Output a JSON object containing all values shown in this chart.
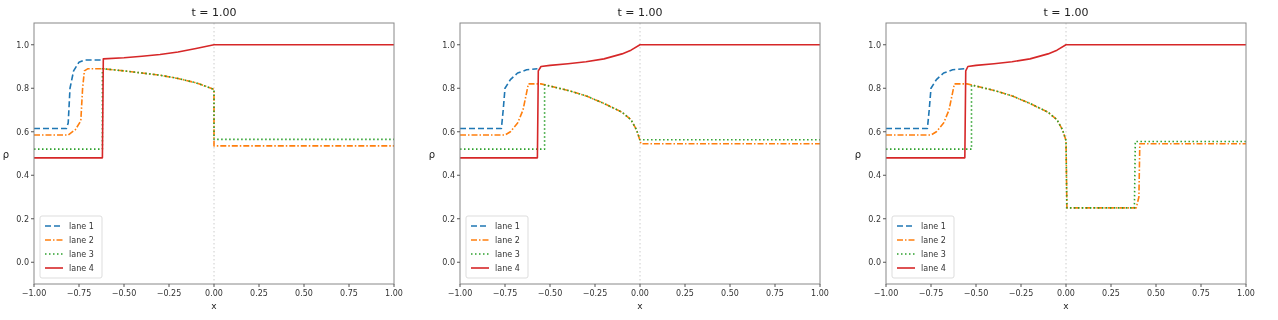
{
  "chart_data": [
    {
      "type": "line",
      "title": "t = 1.00",
      "xlabel": "x",
      "ylabel": "ρ",
      "xlim": [
        -1,
        1
      ],
      "ylim": [
        -0.1,
        1.1
      ],
      "xticks": [
        {
          "value": -1,
          "label": "−1.00"
        },
        {
          "value": -0.75,
          "label": "−0.75"
        },
        {
          "value": -0.5,
          "label": "−0.50"
        },
        {
          "value": -0.25,
          "label": "−0.25"
        },
        {
          "value": 0,
          "label": "0.00"
        },
        {
          "value": 0.25,
          "label": "0.25"
        },
        {
          "value": 0.5,
          "label": "0.50"
        },
        {
          "value": 0.75,
          "label": "0.75"
        },
        {
          "value": 1,
          "label": "1.00"
        }
      ],
      "yticks": [
        {
          "value": 0,
          "label": "0.0"
        },
        {
          "value": 0.2,
          "label": "0.2"
        },
        {
          "value": 0.4,
          "label": "0.4"
        },
        {
          "value": 0.6,
          "label": "0.6"
        },
        {
          "value": 0.8,
          "label": "0.8"
        },
        {
          "value": 1,
          "label": "1.0"
        }
      ],
      "grid": false,
      "legend": "bottom left",
      "ref_lines": [
        {
          "axis": "x",
          "value": 0,
          "color": "#cccccc",
          "line_style": "dotted"
        }
      ],
      "series": [
        {
          "name": "lane 1",
          "color": "#1f77b4",
          "line_style": "dashed",
          "x": [
            -1,
            -0.82,
            -0.81,
            -0.8,
            -0.78,
            -0.75,
            -0.72,
            -0.62
          ],
          "values": [
            0.615,
            0.615,
            0.64,
            0.8,
            0.88,
            0.92,
            0.93,
            0.93
          ]
        },
        {
          "name": "lane 2",
          "color": "#ff7f0e",
          "line_style": "dashdot",
          "x": [
            -1,
            -0.81,
            -0.77,
            -0.74,
            -0.73,
            -0.72,
            -0.7,
            -0.62,
            -0.5,
            -0.4,
            -0.3,
            -0.2,
            -0.1,
            -0.05,
            0,
            0,
            1
          ],
          "values": [
            0.585,
            0.585,
            0.61,
            0.65,
            0.8,
            0.88,
            0.89,
            0.89,
            0.88,
            0.87,
            0.86,
            0.845,
            0.825,
            0.81,
            0.795,
            0.535,
            0.535
          ]
        },
        {
          "name": "lane 3",
          "color": "#2ca02c",
          "line_style": "dotted",
          "x": [
            -1,
            -0.62,
            -0.62,
            -0.5,
            -0.4,
            -0.3,
            -0.2,
            -0.1,
            -0.05,
            0,
            0,
            1
          ],
          "values": [
            0.52,
            0.52,
            0.89,
            0.88,
            0.87,
            0.86,
            0.845,
            0.825,
            0.81,
            0.795,
            0.565,
            0.565
          ]
        },
        {
          "name": "lane 4",
          "color": "#d62728",
          "line_style": "solid",
          "x": [
            -1,
            -0.62,
            -0.615,
            -0.5,
            -0.4,
            -0.3,
            -0.2,
            -0.1,
            0,
            1
          ],
          "values": [
            0.48,
            0.48,
            0.935,
            0.94,
            0.947,
            0.955,
            0.967,
            0.983,
            1.0,
            1.0
          ]
        }
      ]
    },
    {
      "type": "line",
      "title": "t = 1.00",
      "xlabel": "x",
      "ylabel": "ρ",
      "xlim": [
        -1,
        1
      ],
      "ylim": [
        -0.1,
        1.1
      ],
      "xticks": [
        {
          "value": -1,
          "label": "−1.00"
        },
        {
          "value": -0.75,
          "label": "−0.75"
        },
        {
          "value": -0.5,
          "label": "−0.50"
        },
        {
          "value": -0.25,
          "label": "−0.25"
        },
        {
          "value": 0,
          "label": "0.00"
        },
        {
          "value": 0.25,
          "label": "0.25"
        },
        {
          "value": 0.5,
          "label": "0.50"
        },
        {
          "value": 0.75,
          "label": "0.75"
        },
        {
          "value": 1,
          "label": "1.00"
        }
      ],
      "yticks": [
        {
          "value": 0,
          "label": "0.0"
        },
        {
          "value": 0.2,
          "label": "0.2"
        },
        {
          "value": 0.4,
          "label": "0.4"
        },
        {
          "value": 0.6,
          "label": "0.6"
        },
        {
          "value": 0.8,
          "label": "0.8"
        },
        {
          "value": 1,
          "label": "1.0"
        }
      ],
      "grid": false,
      "legend": "bottom left",
      "ref_lines": [
        {
          "axis": "x",
          "value": 0,
          "color": "#cccccc",
          "line_style": "dotted"
        }
      ],
      "series": [
        {
          "name": "lane 1",
          "color": "#1f77b4",
          "line_style": "dashed",
          "x": [
            -1,
            -0.77,
            -0.76,
            -0.75,
            -0.72,
            -0.68,
            -0.63,
            -0.57
          ],
          "values": [
            0.615,
            0.615,
            0.7,
            0.8,
            0.84,
            0.87,
            0.885,
            0.89
          ]
        },
        {
          "name": "lane 2",
          "color": "#ff7f0e",
          "line_style": "dashdot",
          "x": [
            -1,
            -0.75,
            -0.72,
            -0.68,
            -0.65,
            -0.63,
            -0.62,
            -0.55,
            -0.5,
            -0.4,
            -0.3,
            -0.2,
            -0.1,
            -0.05,
            -0.02,
            0,
            0.005,
            1
          ],
          "values": [
            0.585,
            0.585,
            0.6,
            0.64,
            0.7,
            0.78,
            0.82,
            0.82,
            0.81,
            0.79,
            0.765,
            0.73,
            0.69,
            0.655,
            0.61,
            0.56,
            0.545,
            0.545
          ]
        },
        {
          "name": "lane 3",
          "color": "#2ca02c",
          "line_style": "dotted",
          "x": [
            -1,
            -0.53,
            -0.53,
            -0.5,
            -0.4,
            -0.3,
            -0.2,
            -0.1,
            -0.05,
            -0.02,
            0,
            1
          ],
          "values": [
            0.52,
            0.52,
            0.815,
            0.81,
            0.79,
            0.765,
            0.73,
            0.69,
            0.655,
            0.61,
            0.563,
            0.563
          ]
        },
        {
          "name": "lane 4",
          "color": "#d62728",
          "line_style": "solid",
          "x": [
            -1,
            -0.57,
            -0.565,
            -0.55,
            -0.5,
            -0.4,
            -0.3,
            -0.2,
            -0.1,
            -0.05,
            0,
            1
          ],
          "values": [
            0.48,
            0.48,
            0.88,
            0.9,
            0.905,
            0.913,
            0.922,
            0.935,
            0.958,
            0.975,
            1,
            1
          ]
        }
      ]
    },
    {
      "type": "line",
      "title": "t = 1.00",
      "xlabel": "x",
      "ylabel": "ρ",
      "xlim": [
        -1,
        1
      ],
      "ylim": [
        -0.1,
        1.1
      ],
      "xticks": [
        {
          "value": -1,
          "label": "−1.00"
        },
        {
          "value": -0.75,
          "label": "−0.75"
        },
        {
          "value": -0.5,
          "label": "−0.50"
        },
        {
          "value": -0.25,
          "label": "−0.25"
        },
        {
          "value": 0,
          "label": "0.00"
        },
        {
          "value": 0.25,
          "label": "0.25"
        },
        {
          "value": 0.5,
          "label": "0.50"
        },
        {
          "value": 0.75,
          "label": "0.75"
        },
        {
          "value": 1,
          "label": "1.00"
        }
      ],
      "yticks": [
        {
          "value": 0,
          "label": "0.0"
        },
        {
          "value": 0.2,
          "label": "0.2"
        },
        {
          "value": 0.4,
          "label": "0.4"
        },
        {
          "value": 0.6,
          "label": "0.6"
        },
        {
          "value": 0.8,
          "label": "0.8"
        },
        {
          "value": 1,
          "label": "1.0"
        }
      ],
      "grid": false,
      "legend": "bottom left",
      "ref_lines": [
        {
          "axis": "x",
          "value": 0,
          "color": "#cccccc",
          "line_style": "dotted"
        }
      ],
      "series": [
        {
          "name": "lane 1",
          "color": "#1f77b4",
          "line_style": "dashed",
          "x": [
            -1,
            -0.77,
            -0.76,
            -0.75,
            -0.72,
            -0.68,
            -0.63,
            -0.56
          ],
          "values": [
            0.615,
            0.615,
            0.7,
            0.8,
            0.84,
            0.87,
            0.885,
            0.89
          ]
        },
        {
          "name": "lane 2",
          "color": "#ff7f0e",
          "line_style": "dashdot",
          "x": [
            -1,
            -0.75,
            -0.72,
            -0.68,
            -0.65,
            -0.63,
            -0.62,
            -0.55,
            -0.5,
            -0.4,
            -0.3,
            -0.2,
            -0.1,
            -0.05,
            -0.02,
            0,
            0.005,
            0.39,
            0.405,
            0.41,
            1
          ],
          "values": [
            0.585,
            0.585,
            0.6,
            0.64,
            0.7,
            0.78,
            0.82,
            0.82,
            0.81,
            0.79,
            0.765,
            0.73,
            0.69,
            0.655,
            0.61,
            0.56,
            0.25,
            0.25,
            0.3,
            0.545,
            0.545
          ]
        },
        {
          "name": "lane 3",
          "color": "#2ca02c",
          "line_style": "dotted",
          "x": [
            -1,
            -0.525,
            -0.525,
            -0.5,
            -0.4,
            -0.3,
            -0.2,
            -0.1,
            -0.05,
            -0.02,
            0,
            0.005,
            0.38,
            0.385,
            1
          ],
          "values": [
            0.52,
            0.52,
            0.815,
            0.81,
            0.79,
            0.765,
            0.73,
            0.69,
            0.655,
            0.61,
            0.56,
            0.25,
            0.25,
            0.555,
            0.555
          ]
        },
        {
          "name": "lane 4",
          "color": "#d62728",
          "line_style": "solid",
          "x": [
            -1,
            -0.562,
            -0.557,
            -0.545,
            -0.5,
            -0.4,
            -0.3,
            -0.2,
            -0.1,
            -0.05,
            0,
            1
          ],
          "values": [
            0.48,
            0.48,
            0.88,
            0.9,
            0.905,
            0.913,
            0.922,
            0.935,
            0.958,
            0.975,
            1,
            1
          ]
        }
      ]
    }
  ]
}
